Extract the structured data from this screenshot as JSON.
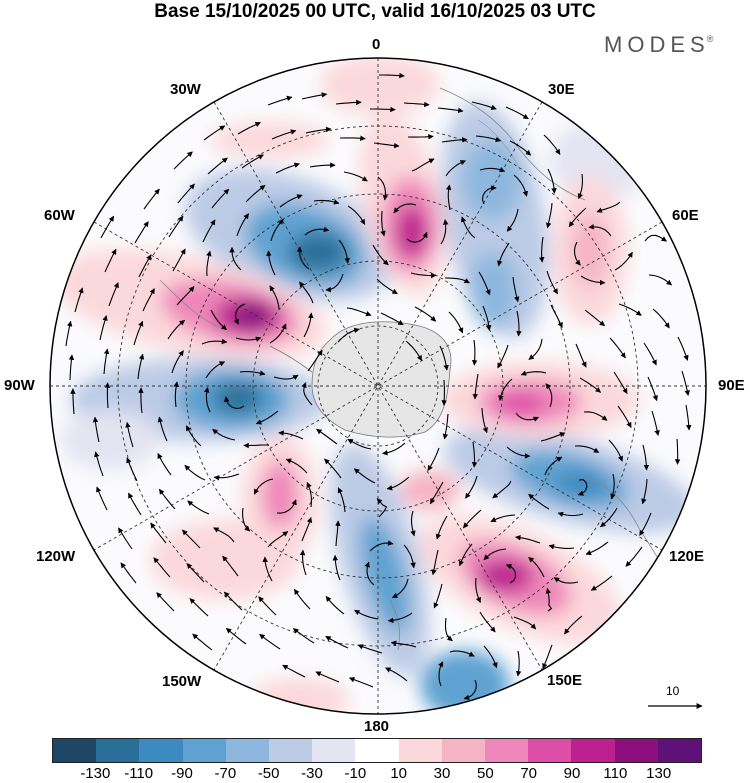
{
  "title": "Base 15/10/2025 00 UTC, valid 16/10/2025 03 UTC",
  "brand": "MODES",
  "brand_mark": "®",
  "longitude_labels": {
    "lon_0": "0",
    "lon_30e": "30E",
    "lon_60e": "60E",
    "lon_90e": "90E",
    "lon_120e": "120E",
    "lon_150e": "150E",
    "lon_180": "180",
    "lon_150w": "150W",
    "lon_120w": "120W",
    "lon_90w": "90W",
    "lon_60w": "60W",
    "lon_30w": "30W"
  },
  "reference_vector": {
    "label": "10"
  },
  "colorbar": {
    "colors": [
      "#1d4764",
      "#2a6f9a",
      "#3d8ac1",
      "#5fa2d1",
      "#8db7de",
      "#bccbe6",
      "#e4e4f2",
      "#ffffff",
      "#fbd8db",
      "#f5b3c3",
      "#ef87ba",
      "#dd4ea8",
      "#bd218f",
      "#8d0f7e",
      "#5e1278"
    ],
    "tick_labels": [
      "-130",
      "-110",
      "-90",
      "-70",
      "-50",
      "-30",
      "-10",
      "10",
      "30",
      "50",
      "70",
      "90",
      "110",
      "130"
    ]
  }
}
